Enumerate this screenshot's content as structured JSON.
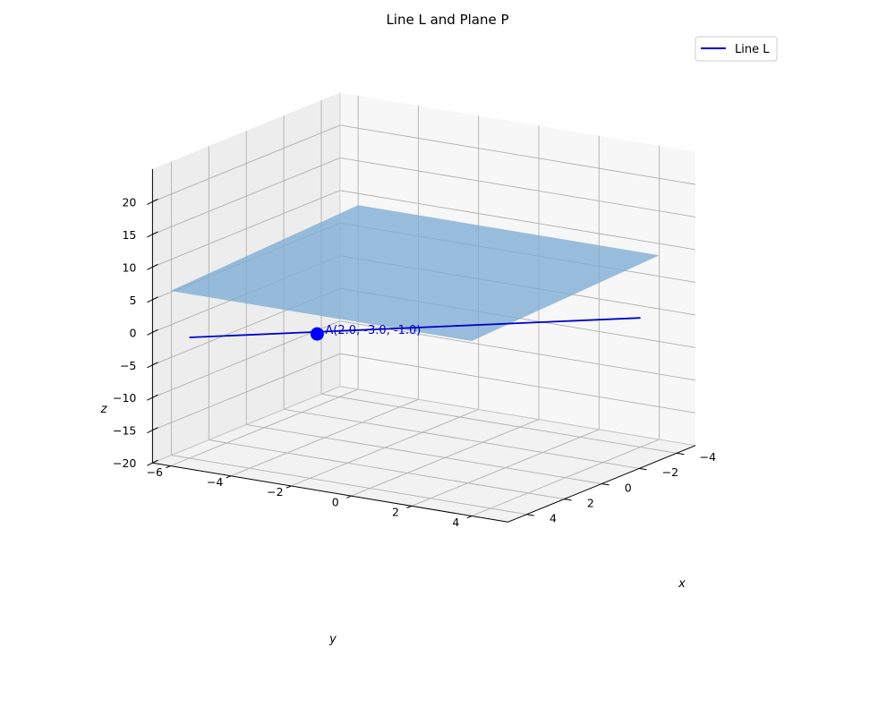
{
  "chart_data": {
    "type": "3d-line-plane",
    "title": "Line L and Plane P",
    "xlabel": "x",
    "ylabel": "y",
    "zlabel": "z",
    "xlim": [
      -5,
      5
    ],
    "ylim": [
      -6.6,
      5.2
    ],
    "zlim": [
      -20,
      25
    ],
    "x_ticks": [
      -4,
      -2,
      0,
      2,
      4
    ],
    "y_ticks": [
      -6,
      -4,
      -2,
      0,
      2,
      4
    ],
    "z_ticks": [
      -20,
      -15,
      -10,
      -5,
      0,
      5,
      10,
      15,
      20
    ],
    "grid": true,
    "legend": {
      "position": "top-right",
      "entries": [
        "Line L"
      ]
    },
    "series": [
      {
        "name": "Line L",
        "type": "line",
        "color": "#0000cd",
        "points": [
          [
            4,
            -6,
            -1.5
          ],
          [
            -4,
            4,
            -0.2
          ]
        ]
      }
    ],
    "plane": {
      "color": "#7fadd3",
      "opacity": 0.8,
      "corners": [
        [
          5,
          -6,
          6.8
        ],
        [
          5,
          4,
          6.8
        ],
        [
          -5,
          4,
          8.2
        ],
        [
          -5,
          -6,
          8.2
        ]
      ]
    },
    "point": {
      "coords": [
        2.0,
        -3.0,
        -1.0
      ],
      "label": "A(2.0, -3.0, -1.0)",
      "color": "#0000ff"
    }
  }
}
